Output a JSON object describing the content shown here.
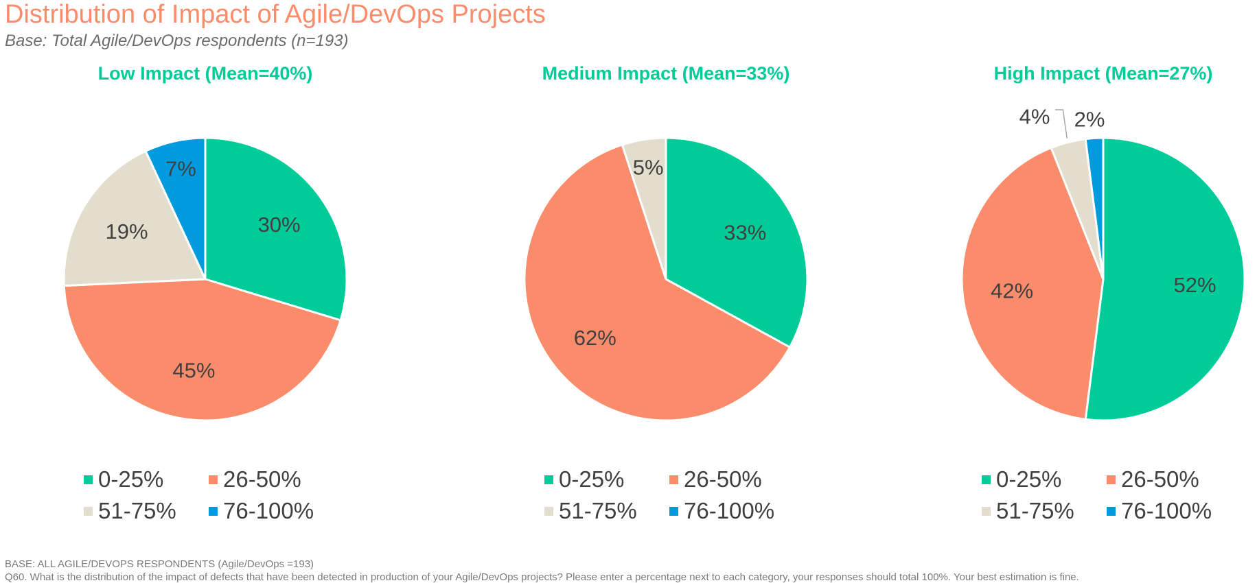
{
  "header": {
    "title": "Distribution of Impact of Agile/DevOps Projects",
    "subtitle": "Base: Total Agile/DevOps respondents (n=193)"
  },
  "colors": {
    "title": "#FA8B6B",
    "chart_title": "#00CC99",
    "text": "#404040",
    "footnote": "#7a7a7a",
    "series": [
      "#00CC99",
      "#FA8B6B",
      "#E3DDCD",
      "#009ADE"
    ]
  },
  "legend": {
    "entries": [
      "0-25%",
      "26-50%",
      "51-75%",
      "76-100%"
    ],
    "layout": "2x2 grid below each pie"
  },
  "chart_data": [
    {
      "type": "pie",
      "title": "Low Impact (Mean=40%)",
      "categories": [
        "0-25%",
        "26-50%",
        "51-75%",
        "76-100%"
      ],
      "values": [
        30,
        45,
        19,
        7
      ],
      "labels": [
        "30%",
        "45%",
        "19%",
        "7%"
      ]
    },
    {
      "type": "pie",
      "title": "Medium Impact (Mean=33%)",
      "categories": [
        "0-25%",
        "26-50%",
        "51-75%",
        "76-100%"
      ],
      "values": [
        33,
        62,
        5,
        0
      ],
      "labels": [
        "33%",
        "62%",
        "5%",
        ""
      ]
    },
    {
      "type": "pie",
      "title": "High Impact (Mean=27%)",
      "categories": [
        "0-25%",
        "26-50%",
        "51-75%",
        "76-100%"
      ],
      "values": [
        52,
        42,
        4,
        2
      ],
      "labels": [
        "52%",
        "42%",
        "4%",
        "2%"
      ]
    }
  ],
  "footnotes": {
    "base": "BASE: ALL AGILE/DEVOPS RESPONDENTS (Agile/DevOps =193)",
    "question": "Q60. What is the distribution of the impact of defects that have been detected in production of your Agile/DevOps projects? Please enter a percentage next to each category, your responses should total 100%. Your best estimation is fine."
  }
}
